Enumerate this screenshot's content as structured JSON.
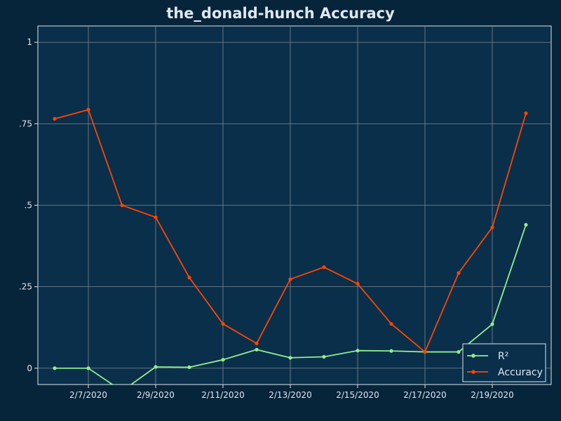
{
  "chart_data": {
    "type": "line",
    "title": "the_donald-hunch Accuracy",
    "xlabel": "",
    "ylabel": "",
    "x_tick_labels": [
      "2/7/2020",
      "2/9/2020",
      "2/11/2020",
      "2/13/2020",
      "2/15/2020",
      "2/17/2020",
      "2/19/2020"
    ],
    "y_tick_labels": [
      "0",
      ".25",
      ".5",
      ".75",
      "1"
    ],
    "y_tick_values": [
      0,
      0.25,
      0.5,
      0.75,
      1
    ],
    "ylim": [
      -0.05,
      1.05
    ],
    "x": [
      "2020-02-06",
      "2020-02-07",
      "2020-02-08",
      "2020-02-09",
      "2020-02-10",
      "2020-02-11",
      "2020-02-12",
      "2020-02-13",
      "2020-02-14",
      "2020-02-15",
      "2020-02-16",
      "2020-02-17",
      "2020-02-18",
      "2020-02-19",
      "2020-02-20"
    ],
    "xlim": [
      "2020-02-05 12:00",
      "2020-02-20 18:00"
    ],
    "grid": true,
    "legend_position": "bottom-right",
    "series": [
      {
        "name": "R²",
        "color": "#90ee90",
        "values": [
          0.0,
          0.0,
          -0.07,
          0.004,
          0.003,
          0.026,
          0.057,
          0.032,
          0.035,
          0.054,
          0.053,
          0.05,
          0.05,
          0.135,
          0.44
        ]
      },
      {
        "name": "Accuracy",
        "color": "#ff4500",
        "values": [
          0.765,
          0.793,
          0.5,
          0.463,
          0.278,
          0.136,
          0.076,
          0.273,
          0.31,
          0.259,
          0.136,
          0.05,
          0.292,
          0.432,
          0.782
        ]
      }
    ],
    "colors": {
      "plot_background": "#0a2f4a",
      "page_background": "#06243a",
      "grid": "#7d8790",
      "text": "#dfe7ef"
    }
  }
}
